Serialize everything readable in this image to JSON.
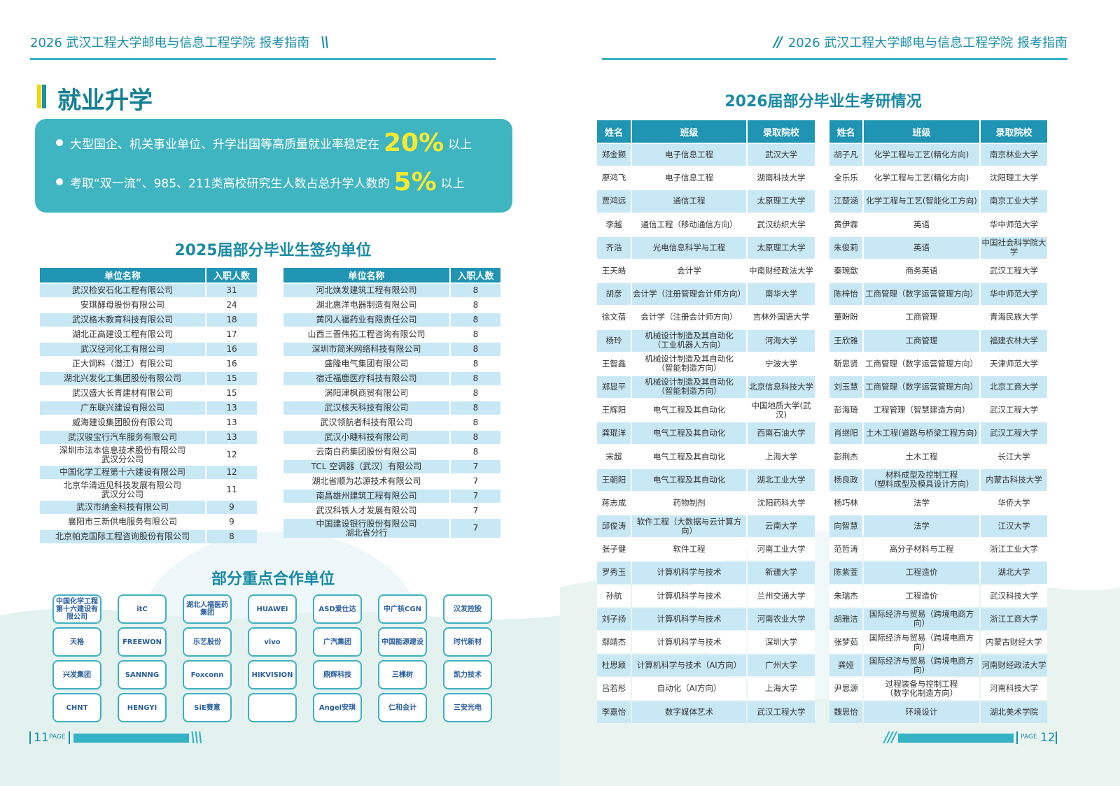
{
  "left_page": {
    "header": "2026 武汉工程大学邮电与信息工程学院  报考指南",
    "section_title": "就业升学",
    "highlights": [
      {
        "text": "大型国企、机关事业单位、升学出国等高质量就业率稳定在",
        "value": "20%",
        "suffix": "以上"
      },
      {
        "text": "考取“双一流”、985、211类高校研究生人数占总升学人数的",
        "value": "5%",
        "suffix": "以上"
      }
    ],
    "signing_title": "2025届部分毕业生签约单位",
    "signing_tables": [
      {
        "columns": [
          "单位名称",
          "入职人数"
        ],
        "rows": [
          [
            "武汉检安石化工程有限公司",
            31
          ],
          [
            "安琪酵母股份有限公司",
            24
          ],
          [
            "武汉格木教育科技有限公司",
            18
          ],
          [
            "湖北正高建设工程有限公司",
            17
          ],
          [
            "武汉径河化工有限公司",
            16
          ],
          [
            "正大饲料（潜江）有限公司",
            16
          ],
          [
            "湖北兴发化工集团股份有限公司",
            15
          ],
          [
            "武汉盛大长青建材有限公司",
            15
          ],
          [
            "广东联兴建设有限公司",
            13
          ],
          [
            "威海建设集团股份有限公司",
            13
          ],
          [
            "武汉骏宝行汽车服务有限公司",
            13
          ],
          [
            "深圳市法本信息技术股份有限公司\n武汉分公司",
            12
          ],
          [
            "中国化学工程第十六建设有限公司",
            12
          ],
          [
            "北京华清远见科技发展有限公司\n武汉分公司",
            11
          ],
          [
            "武汉市纳金科技有限公司",
            9
          ],
          [
            "襄阳市三新供电服务有限公司",
            9
          ],
          [
            "北京帕克国际工程咨询股份有限公司",
            8
          ]
        ]
      },
      {
        "columns": [
          "单位名称",
          "入职人数"
        ],
        "rows": [
          [
            "河北焕发建筑工程有限公司",
            8
          ],
          [
            "湖北惠洋电器制造有限公司",
            8
          ],
          [
            "黄冈人福药业有限责任公司",
            8
          ],
          [
            "山西三晋伟拓工程咨询有限公司",
            8
          ],
          [
            "深圳市简米网络科技有限公司",
            8
          ],
          [
            "盛隆电气集团有限公司",
            8
          ],
          [
            "宿迁福鹿医疗科技有限公司",
            8
          ],
          [
            "涡阳津枫商贸有限公司",
            8
          ],
          [
            "武汉核天科技有限公司",
            8
          ],
          [
            "武汉领航者科技有限公司",
            8
          ],
          [
            "武汉小睫科技有限公司",
            8
          ],
          [
            "云南白药集团股份有限公司",
            8
          ],
          [
            "TCL 空调器（武汉）有限公司",
            7
          ],
          [
            "湖北省顺为芯源技术有限公司",
            7
          ],
          [
            "南昌雄州建筑工程有限公司",
            7
          ],
          [
            "武汉科铁人才发展有限公司",
            7
          ],
          [
            "中国建设银行股份有限公司\n湖北省分行",
            7
          ]
        ]
      }
    ],
    "partners_title": "部分重点合作单位",
    "partner_logos": [
      "中国化学工程\n第十六建设有限公司",
      "itC",
      "湖北人福医药集团",
      "HUAWEI",
      "ASD爱仕达",
      "中广核CGN",
      "汉发控股",
      "天格",
      "FREEWON",
      "乐艺股份",
      "vivo",
      "广汽集团",
      "中国能源建设",
      "时代新材",
      "兴发集团",
      "SANNNG",
      "Foxconn",
      "HIKVISION",
      "鼎辉科技",
      "三棵树",
      "凯力技术",
      "CHNT",
      "HENGYI",
      "SiE赛意",
      null,
      "Angel安琪",
      "仁和会计",
      "三安光电"
    ],
    "page_label": "PAGE",
    "page_number": "11"
  },
  "right_page": {
    "header": "2026 武汉工程大学邮电与信息工程学院  报考指南",
    "title": "2026届部分毕业生考研情况",
    "tables": [
      {
        "columns": [
          "姓名",
          "班级",
          "录取院校"
        ],
        "rows": [
          [
            "郑金颢",
            "电子信息工程",
            "武汉大学"
          ],
          [
            "廖鸿飞",
            "电子信息工程",
            "湖南科技大学"
          ],
          [
            "贾鸿远",
            "通信工程",
            "太原理工大学"
          ],
          [
            "李越",
            "通信工程（移动通信方向）",
            "武汉纺织大学"
          ],
          [
            "齐浩",
            "光电信息科学与工程",
            "太原理工大学"
          ],
          [
            "王天皓",
            "会计学",
            "中南财经政法大学"
          ],
          [
            "胡彦",
            "会计学（注册管理会计师方向）",
            "南华大学"
          ],
          [
            "徐文蓓",
            "会计学（注册会计师方向）",
            "吉林外国语大学"
          ],
          [
            "杨玲",
            "机械设计制造及其自动化\n（工业机器人方向）",
            "河海大学"
          ],
          [
            "王智鑫",
            "机械设计制造及其自动化\n（智能制造方向）",
            "宁波大学"
          ],
          [
            "郑显平",
            "机械设计制造及其自动化\n（智能制造方向）",
            "北京信息科技大学"
          ],
          [
            "王辉阳",
            "电气工程及其自动化",
            "中国地质大学(武汉)"
          ],
          [
            "龚琨洋",
            "电气工程及其自动化",
            "西南石油大学"
          ],
          [
            "宋超",
            "电气工程及其自动化",
            "上海大学"
          ],
          [
            "王朝阳",
            "电气工程及其自动化",
            "湖北工业大学"
          ],
          [
            "蒋志成",
            "药物制剂",
            "沈阳药科大学"
          ],
          [
            "邱俊涛",
            "软件工程（大数据与云计算方向）",
            "云南大学"
          ],
          [
            "张子健",
            "软件工程",
            "河南工业大学"
          ],
          [
            "罗秀玉",
            "计算机科学与技术",
            "新疆大学"
          ],
          [
            "孙航",
            "计算机科学与技术",
            "兰州交通大学"
          ],
          [
            "刘子扬",
            "计算机科学与技术",
            "河南农业大学"
          ],
          [
            "鄢靖杰",
            "计算机科学与技术",
            "深圳大学"
          ],
          [
            "杜思颖",
            "计算机科学与技术（AI方向）",
            "广州大学"
          ],
          [
            "吕若彤",
            "自动化（AI方向）",
            "上海大学"
          ],
          [
            "李嘉怡",
            "数字媒体艺术",
            "武汉工程大学"
          ]
        ]
      },
      {
        "columns": [
          "姓名",
          "班级",
          "录取院校"
        ],
        "rows": [
          [
            "胡子凡",
            "化学工程与工艺(精化方向)",
            "南京林业大学"
          ],
          [
            "全乐乐",
            "化学工程与工艺(精化方向)",
            "沈阳理工大学"
          ],
          [
            "江楚涵",
            "化学工程与工艺(智能化工方向)",
            "南京工业大学"
          ],
          [
            "黄伊霖",
            "英语",
            "华中师范大学"
          ],
          [
            "朱俊莉",
            "英语",
            "中国社会科学院大学"
          ],
          [
            "秦琬歆",
            "商务英语",
            "武汉工程大学"
          ],
          [
            "陈梓怡",
            "工商管理（数字运营管理方向）",
            "华中师范大学"
          ],
          [
            "董盼盼",
            "工商管理",
            "青海民族大学"
          ],
          [
            "王欣雅",
            "工商管理",
            "福建农林大学"
          ],
          [
            "靳思贤",
            "工商管理（数字运营管理方向）",
            "天津师范大学"
          ],
          [
            "刘玉慧",
            "工商管理（数字运营管理方向）",
            "北京工商大学"
          ],
          [
            "彭海琦",
            "工程管理（智慧建造方向）",
            "武汉工程大学"
          ],
          [
            "肖继阳",
            "土木工程(道路与桥梁工程方向)",
            "武汉工程大学"
          ],
          [
            "彭荆杰",
            "土木工程",
            "长江大学"
          ],
          [
            "杨良政",
            "材料成型及控制工程\n（塑料成型及模具设计方向）",
            "内蒙古科技大学"
          ],
          [
            "杨巧林",
            "法学",
            "华侨大学"
          ],
          [
            "向智慧",
            "法学",
            "江汉大学"
          ],
          [
            "范哲涛",
            "高分子材料与工程",
            "浙江工业大学"
          ],
          [
            "陈紫萱",
            "工程造价",
            "湖北大学"
          ],
          [
            "朱瑞杰",
            "工程造价",
            "武汉科技大学"
          ],
          [
            "胡雅洁",
            "国际经济与贸易（跨境电商方向）",
            "浙江工商大学"
          ],
          [
            "张梦茹",
            "国际经济与贸易（跨境电商方向）",
            "内蒙古财经大学"
          ],
          [
            "龚娅",
            "国际经济与贸易（跨境电商方向）",
            "河南财经政法大学"
          ],
          [
            "尹思源",
            "过程装备与控制工程\n（数字化制造方向）",
            "河南科技大学"
          ],
          [
            "魏思怡",
            "环境设计",
            "湖北美术学院"
          ]
        ]
      }
    ],
    "page_label": "PAGE",
    "page_number": "12"
  }
}
